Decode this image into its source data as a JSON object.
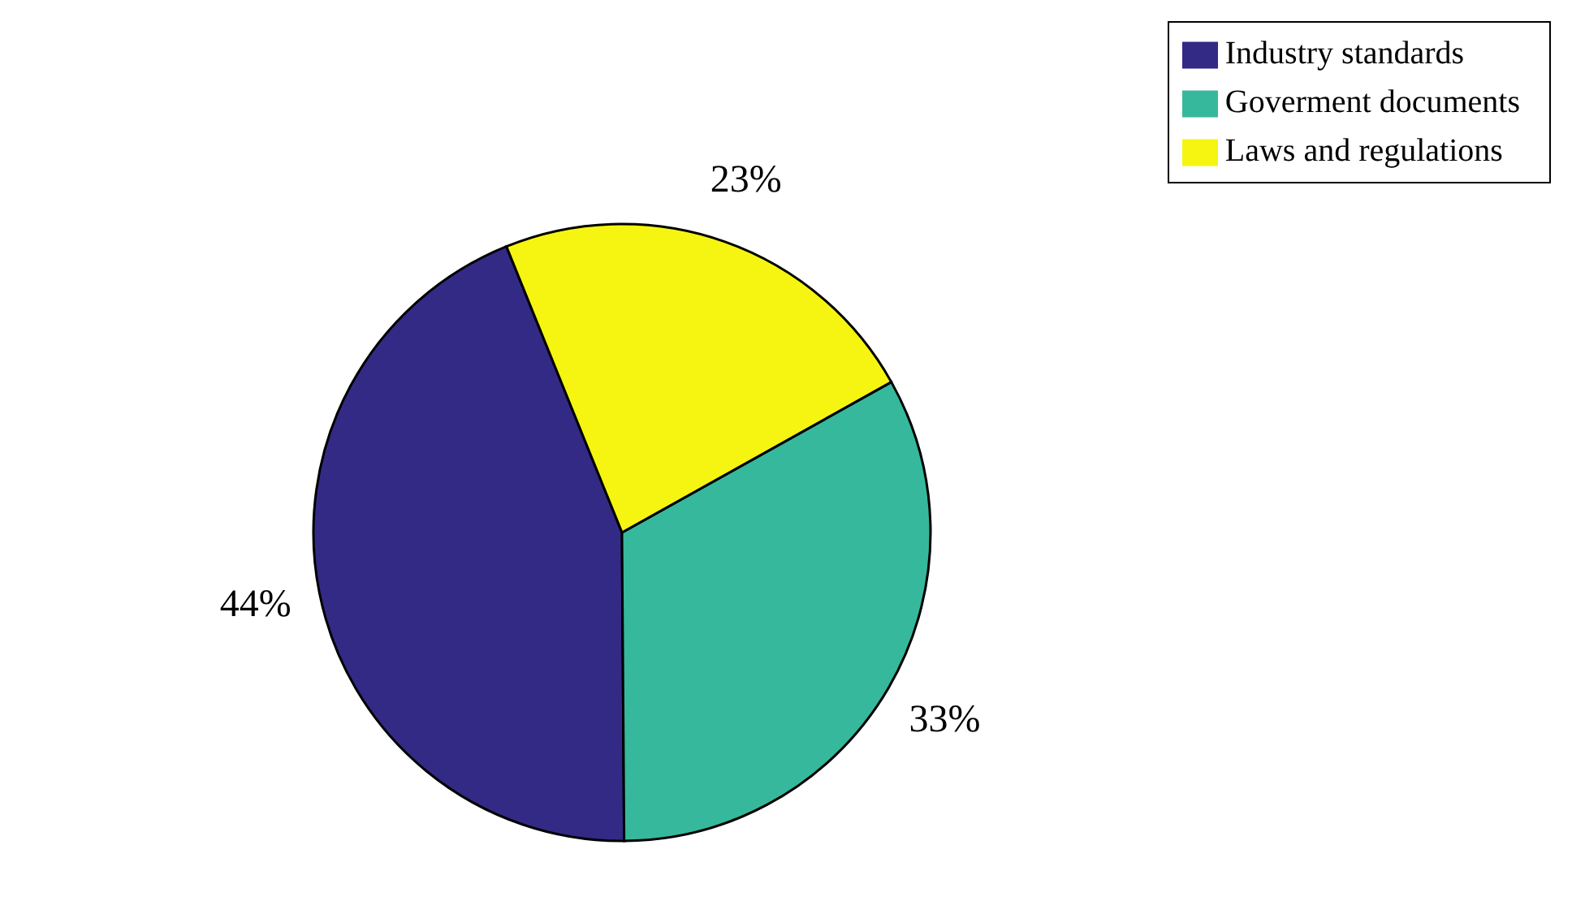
{
  "chart_data": {
    "type": "pie",
    "categories": [
      "Industry standards",
      "Goverment documents",
      "Laws and regulations"
    ],
    "values": [
      44,
      33,
      23
    ],
    "value_labels": [
      "44%",
      "33%",
      "23%"
    ],
    "colors": [
      "#332a86",
      "#36b89c",
      "#f5f511"
    ],
    "legend": "top right"
  }
}
